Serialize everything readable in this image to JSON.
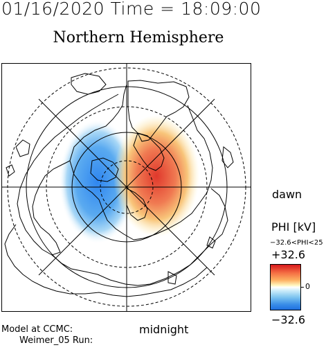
{
  "header": {
    "date": "01/16/2020",
    "time_label": "Time =",
    "time": "18:09:00"
  },
  "title": "Northern Hemisphere",
  "orientation": {
    "dawn": "dawn",
    "midnight": "midnight"
  },
  "colorbar": {
    "label": "PHI [kV]",
    "range_text": "−32.6<PHI<25",
    "max": "+32.6",
    "min": "−32.6",
    "zero": "0",
    "colors": {
      "positive": "#d7191c",
      "negative": "#1f6fe0",
      "neutral": "#ffffff"
    }
  },
  "footer": {
    "line1": "Model at CCMC:",
    "line2": "Weimer_05 Run:"
  }
}
